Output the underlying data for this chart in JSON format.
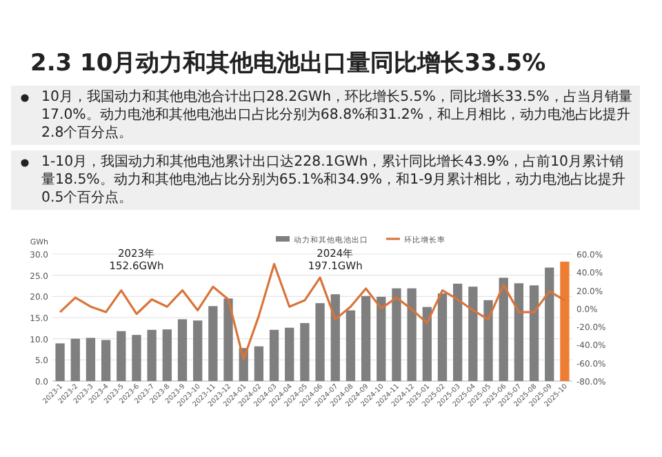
{
  "chart_data": {
    "type": "bar",
    "title": "2.3 10月动力和其他电池出口量同比增长33.5%",
    "annotations": [
      "10月，我国动力和其他电池合计出口28.2GWh，环比增长5.5%，同比增长33.5%，占当月销量17.0%。动力电池和其他电池出口占比分别为68.8%和31.2%，和上月相比，动力电池占比提升2.8个百分点。",
      "1-10月，我国动力和其他电池累计出口达228.1GWh，累计同比增长43.9%，占前10月累计销量18.5%。动力和其他电池占比分别为65.1%和34.9%，和1-9月累计相比，动力电池占比提升0.5个百分点。",
      "2023年\n152.6GWh",
      "2024年\n197.1GWh"
    ],
    "ylabel": "GWh",
    "legend": "top",
    "grid": "y",
    "categories": [
      "2023-1",
      "2023-2",
      "2023-3",
      "2023-4",
      "2023-5",
      "2023-6",
      "2023-7",
      "2023-8",
      "2023-9",
      "2023-10",
      "2023-11",
      "2023-12",
      "2024-01",
      "2024-02",
      "2024-03",
      "2024-04",
      "2024-05",
      "2024-06",
      "2024-07",
      "2024-08",
      "2024-09",
      "2024-10",
      "2024-11",
      "2024-12",
      "2025-01",
      "2025-02",
      "2025-03",
      "2025-04",
      "2025-05",
      "2025-06",
      "2025-07",
      "2025-08",
      "2025-09",
      "2025-10"
    ],
    "ylim": [
      0,
      30
    ],
    "yticks": [
      {
        "value": 0,
        "label": "0.0"
      },
      {
        "value": 5,
        "label": "5.0"
      },
      {
        "value": 10,
        "label": "10.0"
      },
      {
        "value": 15,
        "label": "15.0"
      },
      {
        "value": 20,
        "label": "20.0"
      },
      {
        "value": 25,
        "label": "25.0"
      },
      {
        "value": 30,
        "label": "30.0"
      }
    ],
    "y2lim": [
      -80,
      60
    ],
    "y2ticks": [
      {
        "value": -80,
        "label": "-80.0%"
      },
      {
        "value": -60,
        "label": "-60.0%"
      },
      {
        "value": -40,
        "label": "-40.0%"
      },
      {
        "value": -20,
        "label": "-20.0%"
      },
      {
        "value": 0,
        "label": "0.0%"
      },
      {
        "value": 20,
        "label": "20.0%"
      },
      {
        "value": 40,
        "label": "40.0%"
      },
      {
        "value": 60,
        "label": "60.0%"
      }
    ],
    "series": [
      {
        "name": "动力和其他电池出口",
        "color": "#7f7f7f",
        "colors": [
          "#7f7f7f",
          "#7f7f7f",
          "#7f7f7f",
          "#7f7f7f",
          "#7f7f7f",
          "#7f7f7f",
          "#7f7f7f",
          "#7f7f7f",
          "#7f7f7f",
          "#7f7f7f",
          "#7f7f7f",
          "#7f7f7f",
          "#7f7f7f",
          "#7f7f7f",
          "#7f7f7f",
          "#7f7f7f",
          "#7f7f7f",
          "#7f7f7f",
          "#7f7f7f",
          "#7f7f7f",
          "#7f7f7f",
          "#7f7f7f",
          "#7f7f7f",
          "#7f7f7f",
          "#7f7f7f",
          "#7f7f7f",
          "#7f7f7f",
          "#7f7f7f",
          "#7f7f7f",
          "#7f7f7f",
          "#7f7f7f",
          "#7f7f7f",
          "#7f7f7f",
          "#ed7d31"
        ],
        "values": [
          8.9,
          10.0,
          10.2,
          9.7,
          11.8,
          10.9,
          12.1,
          12.2,
          14.6,
          14.3,
          17.7,
          19.5,
          7.8,
          8.2,
          12.1,
          12.6,
          13.7,
          18.4,
          20.5,
          16.7,
          20.1,
          19.9,
          21.9,
          21.9,
          17.5,
          20.7,
          23.0,
          22.3,
          19.1,
          24.4,
          23.1,
          22.6,
          26.8,
          28.2
        ]
      },
      {
        "name": "环比增长率",
        "type": "line",
        "axis": "y2",
        "color": "#d9743a",
        "values": [
          -4,
          12,
          2,
          -4,
          20,
          -6,
          10,
          2,
          20,
          -2,
          24,
          10,
          -56,
          -8,
          49,
          2,
          9,
          34,
          -12,
          2,
          22,
          0,
          12,
          -1,
          -16,
          20,
          10,
          -2,
          -12,
          26,
          -4,
          -4,
          19,
          9
        ]
      }
    ]
  }
}
